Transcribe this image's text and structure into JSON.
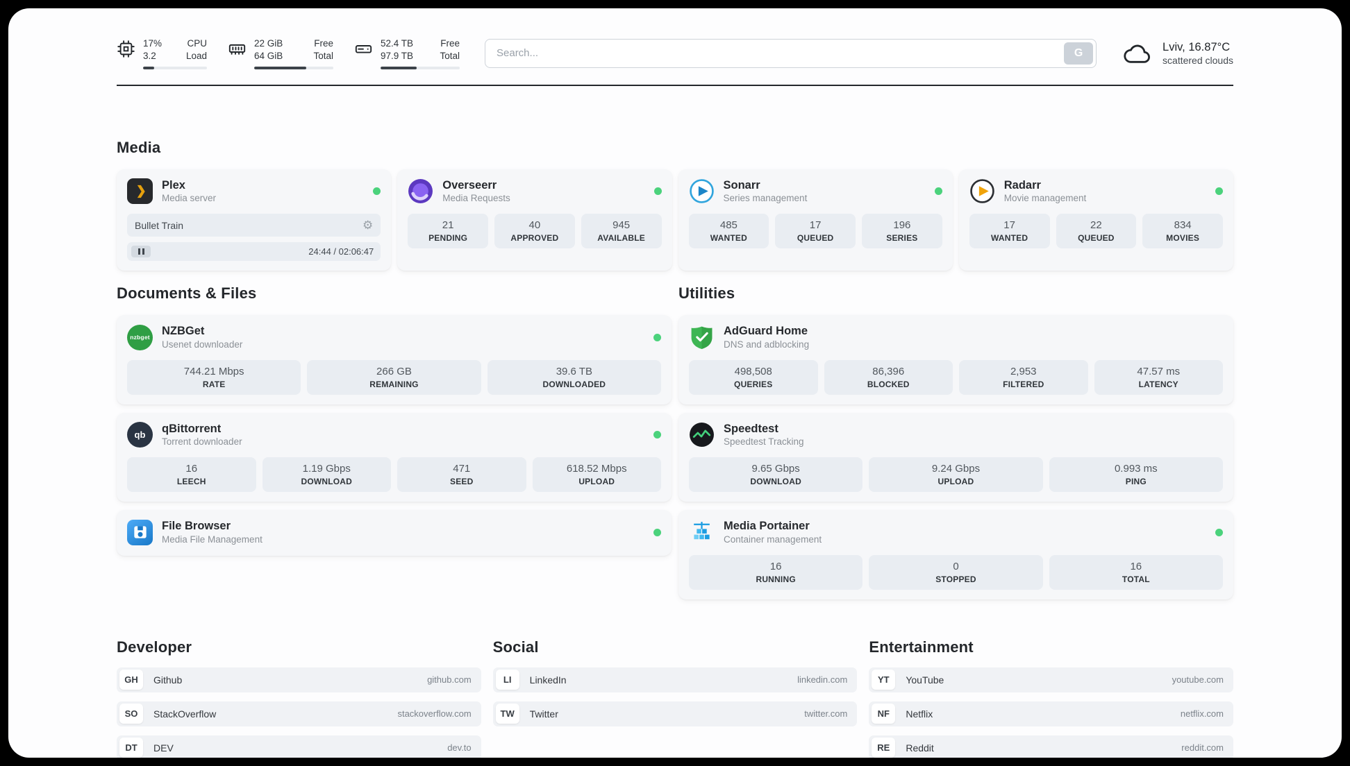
{
  "topbar": {
    "cpu": {
      "icon": "cpu-chip-icon",
      "rows": [
        {
          "value": "17%",
          "label": "CPU"
        },
        {
          "value": "3.2",
          "label": "Load"
        }
      ],
      "progress_pct": 17
    },
    "memory": {
      "icon": "ram-icon",
      "rows": [
        {
          "value": "22 GiB",
          "label": "Free"
        },
        {
          "value": "64 GiB",
          "label": "Total"
        }
      ],
      "progress_pct": 66
    },
    "storage": {
      "icon": "hard-drive-icon",
      "rows": [
        {
          "value": "52.4 TB",
          "label": "Free"
        },
        {
          "value": "97.9 TB",
          "label": "Total"
        }
      ],
      "progress_pct": 46
    },
    "search": {
      "placeholder": "Search...",
      "engine_button": "G"
    },
    "weather": {
      "icon": "cloud-icon",
      "location": "Lviv, 16.87°C",
      "condition": "scattered clouds"
    }
  },
  "sections": {
    "media": {
      "title": "Media",
      "apps": [
        {
          "name": "Plex",
          "subtitle": "Media server",
          "icon": "plex-icon",
          "online": true,
          "now_playing": {
            "title": "Bullet Train",
            "time": "24:44 / 02:06:47"
          }
        },
        {
          "name": "Overseerr",
          "subtitle": "Media Requests",
          "icon": "overseerr-icon",
          "online": true,
          "stats": [
            {
              "value": "21",
              "label": "PENDING"
            },
            {
              "value": "40",
              "label": "APPROVED"
            },
            {
              "value": "945",
              "label": "AVAILABLE"
            }
          ]
        },
        {
          "name": "Sonarr",
          "subtitle": "Series management",
          "icon": "sonarr-icon",
          "online": true,
          "stats": [
            {
              "value": "485",
              "label": "WANTED"
            },
            {
              "value": "17",
              "label": "QUEUED"
            },
            {
              "value": "196",
              "label": "SERIES"
            }
          ]
        },
        {
          "name": "Radarr",
          "subtitle": "Movie management",
          "icon": "radarr-icon",
          "online": true,
          "stats": [
            {
              "value": "17",
              "label": "WANTED"
            },
            {
              "value": "22",
              "label": "QUEUED"
            },
            {
              "value": "834",
              "label": "MOVIES"
            }
          ]
        }
      ]
    },
    "documents": {
      "title": "Documents & Files",
      "apps": [
        {
          "name": "NZBGet",
          "subtitle": "Usenet downloader",
          "icon": "nzbget-icon",
          "icon_text": "nzbget",
          "online": true,
          "stats": [
            {
              "value": "744.21 Mbps",
              "label": "RATE"
            },
            {
              "value": "266 GB",
              "label": "REMAINING"
            },
            {
              "value": "39.6 TB",
              "label": "DOWNLOADED"
            }
          ]
        },
        {
          "name": "qBittorrent",
          "subtitle": "Torrent downloader",
          "icon": "qbittorrent-icon",
          "icon_text": "qb",
          "online": true,
          "stats": [
            {
              "value": "16",
              "label": "LEECH"
            },
            {
              "value": "1.19 Gbps",
              "label": "DOWNLOAD"
            },
            {
              "value": "471",
              "label": "SEED"
            },
            {
              "value": "618.52 Mbps",
              "label": "UPLOAD"
            }
          ]
        },
        {
          "name": "File Browser",
          "subtitle": "Media File Management",
          "icon": "filebrowser-icon",
          "online": true
        }
      ]
    },
    "utilities": {
      "title": "Utilities",
      "apps": [
        {
          "name": "AdGuard Home",
          "subtitle": "DNS and adblocking",
          "icon": "adguard-icon",
          "online": false,
          "stats": [
            {
              "value": "498,508",
              "label": "QUERIES"
            },
            {
              "value": "86,396",
              "label": "BLOCKED"
            },
            {
              "value": "2,953",
              "label": "FILTERED"
            },
            {
              "value": "47.57 ms",
              "label": "LATENCY"
            }
          ]
        },
        {
          "name": "Speedtest",
          "subtitle": "Speedtest Tracking",
          "icon": "speedtest-icon",
          "online": false,
          "stats": [
            {
              "value": "9.65 Gbps",
              "label": "DOWNLOAD"
            },
            {
              "value": "9.24 Gbps",
              "label": "UPLOAD"
            },
            {
              "value": "0.993 ms",
              "label": "PING"
            }
          ]
        },
        {
          "name": "Media Portainer",
          "subtitle": "Container management",
          "icon": "portainer-icon",
          "online": true,
          "stats": [
            {
              "value": "16",
              "label": "RUNNING"
            },
            {
              "value": "0",
              "label": "STOPPED"
            },
            {
              "value": "16",
              "label": "TOTAL"
            }
          ]
        }
      ]
    },
    "bookmarks": [
      {
        "title": "Developer",
        "items": [
          {
            "abbr": "GH",
            "name": "Github",
            "url": "github.com"
          },
          {
            "abbr": "SO",
            "name": "StackOverflow",
            "url": "stackoverflow.com"
          },
          {
            "abbr": "DT",
            "name": "DEV",
            "url": "dev.to"
          }
        ]
      },
      {
        "title": "Social",
        "items": [
          {
            "abbr": "LI",
            "name": "LinkedIn",
            "url": "linkedin.com"
          },
          {
            "abbr": "TW",
            "name": "Twitter",
            "url": "twitter.com"
          }
        ]
      },
      {
        "title": "Entertainment",
        "items": [
          {
            "abbr": "YT",
            "name": "YouTube",
            "url": "youtube.com"
          },
          {
            "abbr": "NF",
            "name": "Netflix",
            "url": "netflix.com"
          },
          {
            "abbr": "RE",
            "name": "Reddit",
            "url": "reddit.com"
          }
        ]
      }
    ]
  },
  "colors": {
    "status_online": "#4bd27c",
    "topbar_progress": "#3c4249",
    "card_background": "#f6f7f9",
    "stat_background": "#e9edf2",
    "plex_gold": "#e5a00d",
    "divider": "#24282c"
  }
}
